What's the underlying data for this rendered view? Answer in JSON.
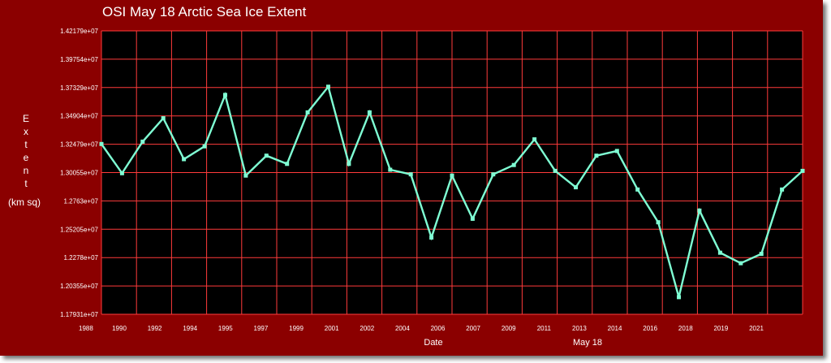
{
  "colors": {
    "frame": "#8b0000",
    "plot_background": "#000000",
    "grid": "#ff3b3b",
    "line": "#7fffd4",
    "text": "#ffffff"
  },
  "chart_data": {
    "type": "line",
    "title": "OSI May 18 Arctic Sea Ice Extent",
    "xlabel": "Date",
    "xlabel_secondary": "May 18",
    "ylabel": "Extent",
    "ylabel_units": "(km sq)",
    "grid": true,
    "legend": "none",
    "ylim": [
      11793100,
      14217900
    ],
    "y_tick_labels": [
      "1.42179e+07",
      "1.39754e+07",
      "1.37329e+07",
      "1.34904e+07",
      "1.32479e+07",
      "1.30055e+07",
      "1.2763e+07",
      "1.25205e+07",
      "1.2278e+07",
      "1.20355e+07",
      "1.17931e+07"
    ],
    "x_tick_labels": [
      "1988",
      "1990",
      "1992",
      "1994",
      "1995",
      "1997",
      "1999",
      "2001",
      "2002",
      "2004",
      "2006",
      "2007",
      "2009",
      "2011",
      "2013",
      "2014",
      "2016",
      "2018",
      "2019",
      "2021"
    ],
    "series": [
      {
        "values": [
          13250000,
          13000000,
          13270000,
          13470000,
          13120000,
          13230000,
          13670000,
          12980000,
          13150000,
          13080000,
          13520000,
          13740000,
          13080000,
          13520000,
          13030000,
          12990000,
          12450000,
          12980000,
          12610000,
          12990000,
          13070000,
          13290000,
          13020000,
          12880000,
          13150000,
          13190000,
          12860000,
          12580000,
          11940000,
          12680000,
          12320000,
          12230000,
          12310000,
          12860000,
          13020000
        ]
      }
    ]
  }
}
